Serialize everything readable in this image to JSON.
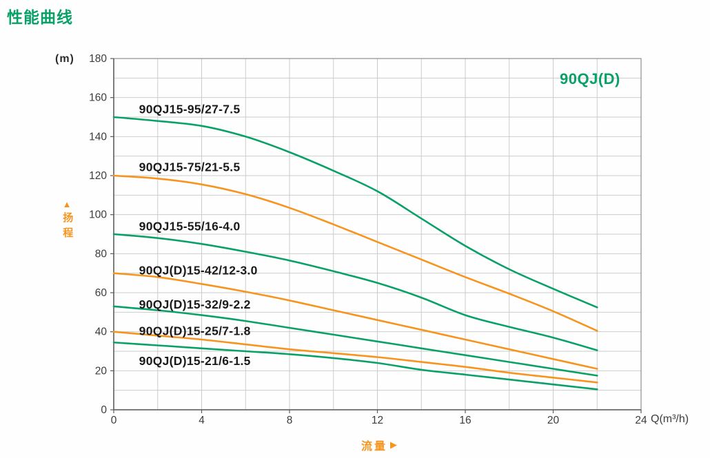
{
  "page": {
    "title": "性能曲线"
  },
  "labels": {
    "family": "90QJ(D)",
    "y_unit": "(m)",
    "x_unit": "Q(m³/h)",
    "y_axis_name": "扬程",
    "x_axis_name": "流量",
    "up_arrow_icon": "▲",
    "right_arrow_icon": "▶"
  },
  "colors": {
    "green": "#0aa168",
    "orange": "#f7941e",
    "curve_label_text": "#1b1b1b",
    "tick_text": "#3c3c3c",
    "grid": "#cbcbcb",
    "frame": "#8e8e8e",
    "axis": "#5a5a5a"
  },
  "chart_data": {
    "type": "line",
    "title": "性能曲线",
    "xlabel": "流量 Q(m³/h)",
    "ylabel": "扬程 (m)",
    "xlim": [
      0,
      24
    ],
    "ylim": [
      0,
      180
    ],
    "x_grid_step": 2,
    "y_grid_step": 10,
    "x_ticks": [
      0,
      4,
      8,
      12,
      16,
      20,
      24
    ],
    "y_ticks": [
      0,
      20,
      40,
      60,
      80,
      100,
      120,
      140,
      160,
      180
    ],
    "grid": true,
    "legend_position": "inline-curve-labels",
    "x": [
      0,
      2,
      4,
      6,
      8,
      10,
      12,
      14,
      16,
      18,
      20,
      22
    ],
    "series": [
      {
        "name": "90QJ15-95/27-7.5",
        "color": "#0aa168",
        "label_anchor": {
          "q": 1.15,
          "h": 154
        },
        "values": [
          150,
          148,
          145.5,
          140,
          132,
          122.5,
          112,
          98,
          84,
          72,
          62,
          52.5
        ]
      },
      {
        "name": "90QJ15-75/21-5.5",
        "color": "#f7941e",
        "label_anchor": {
          "q": 1.15,
          "h": 124.5
        },
        "values": [
          120,
          118.5,
          115.5,
          110.5,
          103.5,
          95,
          86,
          77,
          68,
          59.5,
          50.5,
          40.5
        ]
      },
      {
        "name": "90QJ15-55/16-4.0",
        "color": "#0aa168",
        "label_anchor": {
          "q": 1.15,
          "h": 94
        },
        "values": [
          90,
          88,
          85,
          81,
          76.5,
          71,
          65,
          57.5,
          48.5,
          42.5,
          37,
          30.5
        ]
      },
      {
        "name": "90QJ(D)15-42/12-3.0",
        "color": "#f7941e",
        "label_anchor": {
          "q": 1.15,
          "h": 71.5
        },
        "values": [
          70,
          68,
          64.5,
          60.5,
          56,
          51,
          46,
          41,
          36,
          31,
          26,
          21
        ]
      },
      {
        "name": "90QJ(D)15-32/9-2.2",
        "color": "#0aa168",
        "label_anchor": {
          "q": 1.15,
          "h": 54
        },
        "values": [
          53,
          51,
          48.5,
          45.5,
          42,
          38.5,
          35,
          31.5,
          28,
          24.5,
          21,
          17.5
        ]
      },
      {
        "name": "90QJ(D)15-25/7-1.8",
        "color": "#f7941e",
        "label_anchor": {
          "q": 1.15,
          "h": 40.5
        },
        "values": [
          40,
          38,
          36,
          33.5,
          31,
          29,
          27,
          24.5,
          22,
          19,
          16.5,
          14
        ]
      },
      {
        "name": "90QJ(D)15-21/6-1.5",
        "color": "#0aa168",
        "label_anchor": {
          "q": 1.15,
          "h": 25
        },
        "values": [
          34.5,
          33,
          31.5,
          30,
          28.5,
          26.5,
          24,
          20.5,
          18,
          15.5,
          13,
          10.5
        ]
      }
    ]
  }
}
